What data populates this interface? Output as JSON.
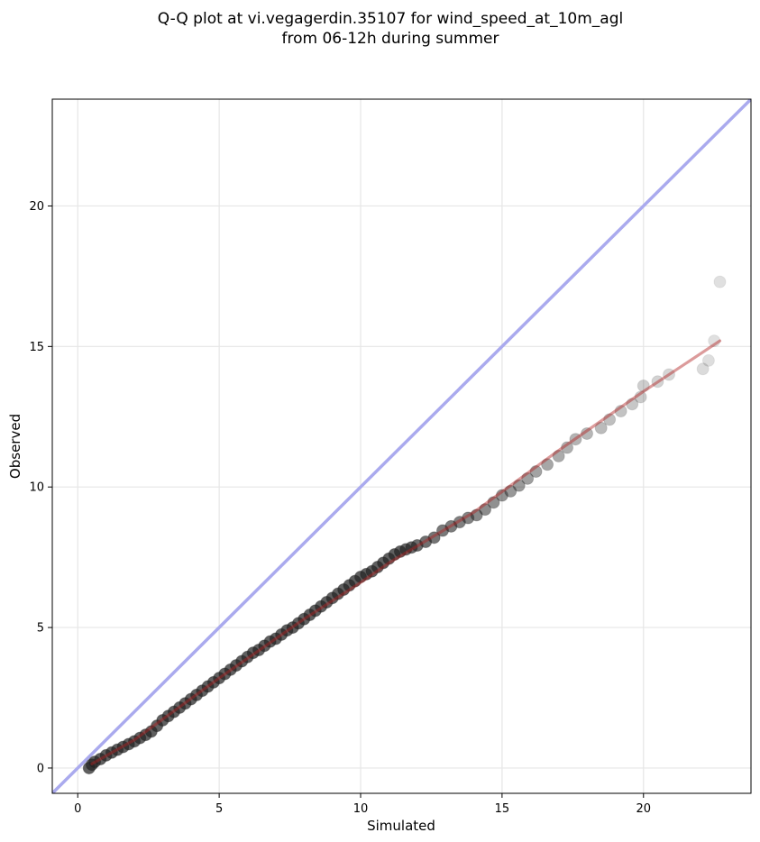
{
  "chart_data": {
    "type": "scatter",
    "title_lines": [
      "Q-Q plot at vi.vegagerdin.35107 for wind_speed_at_10m_agl",
      "from 06-12h during summer"
    ],
    "xlabel": "Simulated",
    "ylabel": "Observed",
    "xlim": [
      -0.9,
      23.8
    ],
    "ylim": [
      -0.9,
      23.8
    ],
    "xticks": [
      0,
      5,
      10,
      15,
      20
    ],
    "yticks": [
      0,
      5,
      10,
      15,
      20
    ],
    "grid": true,
    "reference_line": {
      "name": "y = x",
      "color": "#aaaaee"
    },
    "fit_line": {
      "color": "#ee9a9a",
      "points": [
        [
          0.5,
          0.15
        ],
        [
          2,
          1.0
        ],
        [
          5,
          3.2
        ],
        [
          8,
          5.3
        ],
        [
          10,
          6.6
        ],
        [
          11,
          7.3
        ],
        [
          14,
          9.1
        ],
        [
          17,
          11.3
        ],
        [
          20,
          13.4
        ],
        [
          22.7,
          15.2
        ]
      ]
    },
    "quantiles": {
      "color": "#222222",
      "points": [
        [
          0.4,
          0.0
        ],
        [
          0.5,
          0.12
        ],
        [
          0.6,
          0.22
        ],
        [
          0.8,
          0.32
        ],
        [
          1.0,
          0.45
        ],
        [
          1.2,
          0.55
        ],
        [
          1.4,
          0.65
        ],
        [
          1.6,
          0.75
        ],
        [
          1.8,
          0.85
        ],
        [
          2.0,
          0.95
        ],
        [
          2.2,
          1.07
        ],
        [
          2.4,
          1.18
        ],
        [
          2.6,
          1.3
        ],
        [
          2.8,
          1.5
        ],
        [
          3.0,
          1.7
        ],
        [
          3.2,
          1.85
        ],
        [
          3.4,
          2.0
        ],
        [
          3.6,
          2.15
        ],
        [
          3.8,
          2.3
        ],
        [
          4.0,
          2.45
        ],
        [
          4.2,
          2.6
        ],
        [
          4.4,
          2.75
        ],
        [
          4.6,
          2.9
        ],
        [
          4.8,
          3.05
        ],
        [
          5.0,
          3.2
        ],
        [
          5.2,
          3.35
        ],
        [
          5.4,
          3.5
        ],
        [
          5.6,
          3.65
        ],
        [
          5.8,
          3.8
        ],
        [
          6.0,
          3.95
        ],
        [
          6.2,
          4.1
        ],
        [
          6.4,
          4.2
        ],
        [
          6.6,
          4.35
        ],
        [
          6.8,
          4.5
        ],
        [
          7.0,
          4.6
        ],
        [
          7.2,
          4.75
        ],
        [
          7.4,
          4.9
        ],
        [
          7.6,
          5.0
        ],
        [
          7.8,
          5.15
        ],
        [
          8.0,
          5.3
        ],
        [
          8.2,
          5.45
        ],
        [
          8.4,
          5.6
        ],
        [
          8.6,
          5.75
        ],
        [
          8.8,
          5.9
        ],
        [
          9.0,
          6.05
        ],
        [
          9.2,
          6.2
        ],
        [
          9.4,
          6.35
        ],
        [
          9.6,
          6.5
        ],
        [
          9.8,
          6.65
        ],
        [
          10.0,
          6.8
        ],
        [
          10.2,
          6.9
        ],
        [
          10.4,
          7.0
        ],
        [
          10.6,
          7.15
        ],
        [
          10.8,
          7.3
        ],
        [
          11.0,
          7.45
        ],
        [
          11.2,
          7.6
        ],
        [
          11.4,
          7.7
        ],
        [
          11.6,
          7.78
        ],
        [
          11.8,
          7.85
        ],
        [
          12.0,
          7.92
        ],
        [
          12.3,
          8.05
        ],
        [
          12.6,
          8.2
        ],
        [
          12.9,
          8.45
        ],
        [
          13.2,
          8.6
        ],
        [
          13.5,
          8.75
        ],
        [
          13.8,
          8.9
        ],
        [
          14.1,
          9.0
        ],
        [
          14.4,
          9.2
        ],
        [
          14.7,
          9.45
        ],
        [
          15.0,
          9.7
        ],
        [
          15.3,
          9.85
        ],
        [
          15.6,
          10.05
        ],
        [
          15.9,
          10.3
        ],
        [
          16.2,
          10.55
        ],
        [
          16.6,
          10.8
        ],
        [
          17.0,
          11.1
        ],
        [
          17.3,
          11.4
        ],
        [
          17.6,
          11.7
        ],
        [
          18.0,
          11.9
        ],
        [
          18.5,
          12.1
        ],
        [
          18.8,
          12.4
        ],
        [
          19.2,
          12.7
        ],
        [
          19.6,
          12.95
        ],
        [
          19.9,
          13.2
        ],
        [
          20.0,
          13.6
        ],
        [
          20.5,
          13.75
        ],
        [
          20.9,
          14.0
        ],
        [
          22.1,
          14.2
        ],
        [
          22.3,
          14.5
        ],
        [
          22.5,
          15.2
        ],
        [
          22.7,
          17.3
        ]
      ]
    }
  }
}
